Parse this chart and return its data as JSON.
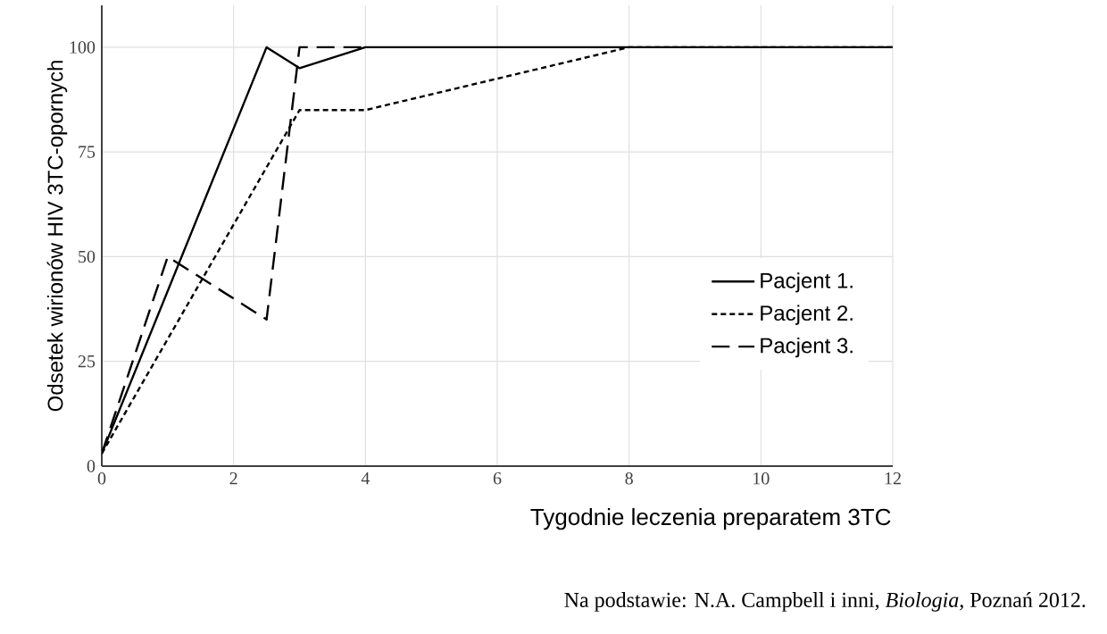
{
  "chart_data": {
    "type": "line",
    "xlabel": "Tygodnie leczenia preparatem 3TC",
    "ylabel": "Odsetek wirionów HIV 3TC-opornych",
    "xlim": [
      0,
      12
    ],
    "xticks": [
      0,
      2,
      4,
      6,
      8,
      10,
      12
    ],
    "ylim": [
      0,
      110
    ],
    "yticks": [
      0,
      25,
      50,
      75,
      100
    ],
    "grid": true,
    "legend": "right",
    "marker": "none",
    "series": [
      {
        "name": "Pacjent 1.",
        "color": "#000000",
        "line_style": "solid",
        "x": [
          0,
          2.5,
          3,
          4,
          12
        ],
        "values": [
          3,
          100,
          95,
          100,
          100
        ]
      },
      {
        "name": "Pacjent 2.",
        "color": "#000000",
        "line_style": "dashed",
        "x": [
          0,
          3,
          4,
          8,
          12
        ],
        "values": [
          3,
          85,
          85,
          100,
          100
        ]
      },
      {
        "name": "Pacjent 3.",
        "color": "#000000",
        "line_style": "long dashed",
        "x": [
          0,
          1,
          2.5,
          3,
          4
        ],
        "values": [
          3,
          50,
          35,
          100,
          100
        ]
      }
    ],
    "annotations": [
      "Na podstawie: N.A. Campbell i inni, *Biologia*, Poznań 2012."
    ]
  }
}
